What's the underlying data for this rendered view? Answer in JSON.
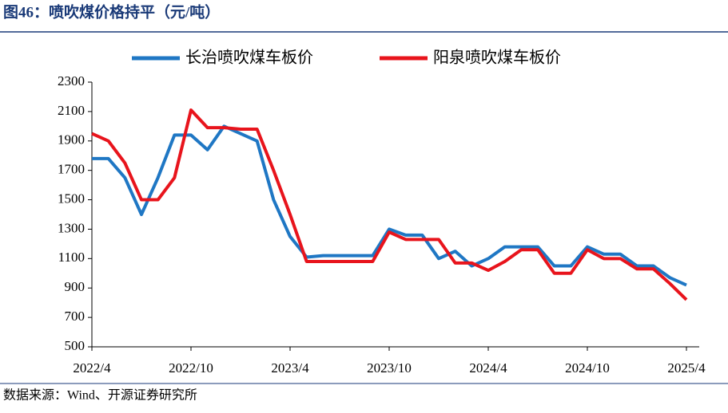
{
  "title": "图46：喷吹煤价格持平（元/吨）",
  "source": "数据来源：Wind、开源证券研究所",
  "chart_data": {
    "type": "line",
    "categories": [
      "2022/4",
      null,
      null,
      null,
      null,
      null,
      "2022/10",
      null,
      null,
      null,
      null,
      null,
      "2023/4",
      null,
      null,
      null,
      null,
      null,
      "2023/10",
      null,
      null,
      null,
      null,
      null,
      "2024/4",
      null,
      null,
      null,
      null,
      null,
      "2024/10",
      null,
      null,
      null,
      null,
      null,
      "2025/4"
    ],
    "series": [
      {
        "name": "长治喷吹煤车板价",
        "color": "#1f77c4",
        "values": [
          1780,
          1780,
          1650,
          1400,
          1650,
          1940,
          1940,
          1840,
          2000,
          1950,
          1900,
          1500,
          1250,
          1110,
          1120,
          1120,
          1120,
          1120,
          1300,
          1260,
          1260,
          1100,
          1150,
          1050,
          1100,
          1180,
          1180,
          1180,
          1050,
          1050,
          1180,
          1130,
          1130,
          1050,
          1050,
          970,
          920
        ]
      },
      {
        "name": "阳泉喷吹煤车板价",
        "color": "#e8141c",
        "values": [
          1950,
          1900,
          1750,
          1500,
          1500,
          1650,
          2110,
          1990,
          1990,
          1980,
          1980,
          1700,
          1400,
          1080,
          1080,
          1080,
          1080,
          1080,
          1280,
          1230,
          1230,
          1230,
          1070,
          1070,
          1020,
          1080,
          1160,
          1160,
          1000,
          1000,
          1160,
          1100,
          1100,
          1030,
          1030,
          930,
          820
        ]
      }
    ],
    "ylim": [
      500,
      2300
    ],
    "yticks": [
      500,
      700,
      900,
      1100,
      1300,
      1500,
      1700,
      1900,
      2100,
      2300
    ],
    "legend": "top"
  }
}
